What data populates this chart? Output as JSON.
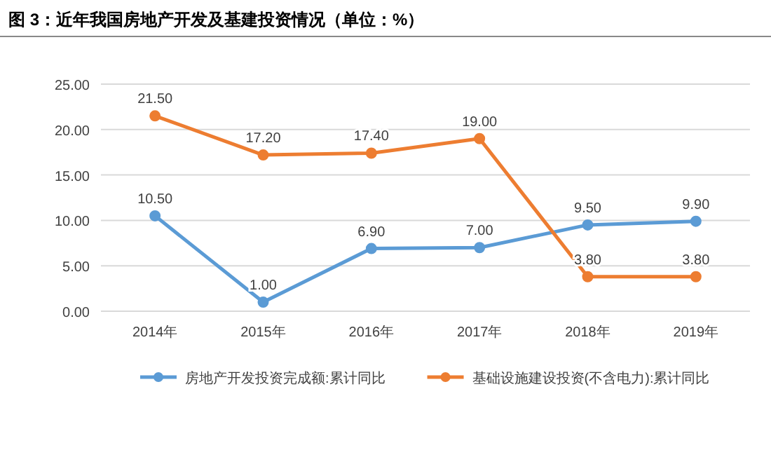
{
  "chart_data": {
    "type": "line",
    "title": "图 3：近年我国房地产开发及基建投资情况（单位：%）",
    "categories": [
      "2014年",
      "2015年",
      "2016年",
      "2017年",
      "2018年",
      "2019年"
    ],
    "series": [
      {
        "name": "房地产开发投资完成额:累计同比",
        "color": "#5b9bd5",
        "values": [
          10.5,
          1.0,
          6.9,
          7.0,
          9.5,
          9.9
        ],
        "value_labels": [
          "10.50",
          "1.00",
          "6.90",
          "7.00",
          "9.50",
          "9.90"
        ]
      },
      {
        "name": "基础设施建设投资(不含电力):累计同比",
        "color": "#ed7d31",
        "values": [
          21.5,
          17.2,
          17.4,
          19.0,
          3.8,
          3.8
        ],
        "value_labels": [
          "21.50",
          "17.20",
          "17.40",
          "19.00",
          "3.80",
          "3.80"
        ]
      }
    ],
    "ylim": [
      0,
      25
    ],
    "yticks": [
      {
        "value": 0,
        "label": "0.00"
      },
      {
        "value": 5,
        "label": "5.00"
      },
      {
        "value": 10,
        "label": "10.00"
      },
      {
        "value": 15,
        "label": "15.00"
      },
      {
        "value": 20,
        "label": "20.00"
      },
      {
        "value": 25,
        "label": "25.00"
      }
    ],
    "grid": "y",
    "legend": "bottom",
    "marker": "circle",
    "line_style": "solid"
  }
}
